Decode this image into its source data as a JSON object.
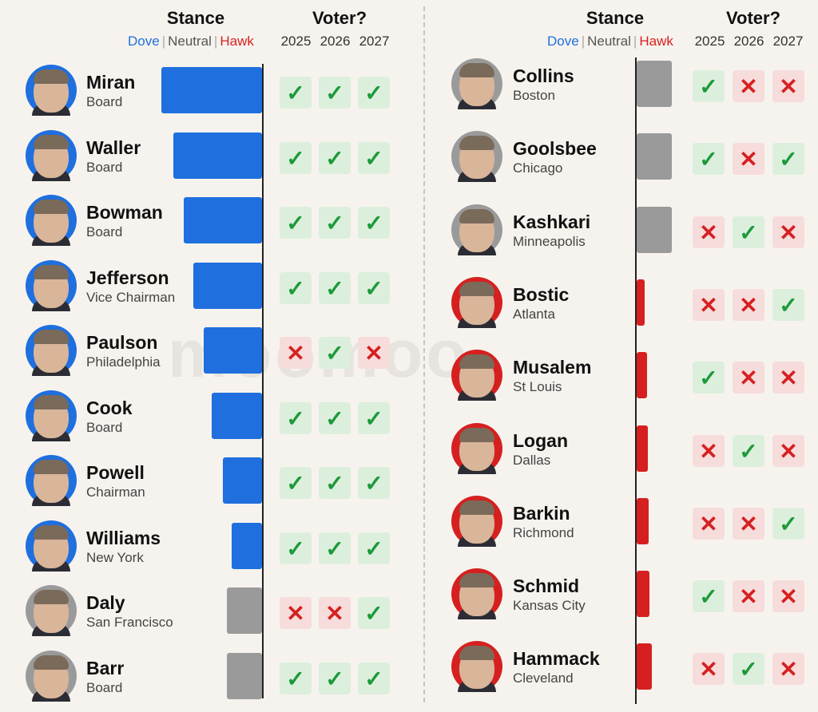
{
  "headers": {
    "stance": "Stance",
    "voter": "Voter?",
    "legend": {
      "dove": "Dove",
      "neutral": "Neutral",
      "hawk": "Hawk",
      "sep": "|"
    },
    "years": [
      "2025",
      "2026",
      "2027"
    ]
  },
  "watermark": "moomoo",
  "colors": {
    "dove": "#1f6fde",
    "neutral": "#9a9a9a",
    "hawk": "#d62020"
  },
  "vote_symbols": {
    "yes": "✓",
    "no": "✕"
  },
  "left": [
    {
      "name": "Miran",
      "role": "Board",
      "stance": "dove",
      "strength": 1.0,
      "votes": [
        "yes",
        "yes",
        "yes"
      ]
    },
    {
      "name": "Waller",
      "role": "Board",
      "stance": "dove",
      "strength": 0.88,
      "votes": [
        "yes",
        "yes",
        "yes"
      ]
    },
    {
      "name": "Bowman",
      "role": "Board",
      "stance": "dove",
      "strength": 0.78,
      "votes": [
        "yes",
        "yes",
        "yes"
      ]
    },
    {
      "name": "Jefferson",
      "role": "Vice Chairman",
      "stance": "dove",
      "strength": 0.68,
      "votes": [
        "yes",
        "yes",
        "yes"
      ]
    },
    {
      "name": "Paulson",
      "role": "Philadelphia",
      "stance": "dove",
      "strength": 0.58,
      "votes": [
        "no",
        "yes",
        "no"
      ]
    },
    {
      "name": "Cook",
      "role": "Board",
      "stance": "dove",
      "strength": 0.5,
      "votes": [
        "yes",
        "yes",
        "yes"
      ]
    },
    {
      "name": "Powell",
      "role": "Chairman",
      "stance": "dove",
      "strength": 0.39,
      "votes": [
        "yes",
        "yes",
        "yes"
      ]
    },
    {
      "name": "Williams",
      "role": "New York",
      "stance": "dove",
      "strength": 0.3,
      "votes": [
        "yes",
        "yes",
        "yes"
      ]
    },
    {
      "name": "Daly",
      "role": "San Francisco",
      "stance": "neutral",
      "strength": 0.35,
      "votes": [
        "no",
        "no",
        "yes"
      ]
    },
    {
      "name": "Barr",
      "role": "Board",
      "stance": "neutral",
      "strength": 0.35,
      "votes": [
        "yes",
        "yes",
        "yes"
      ]
    }
  ],
  "right": [
    {
      "name": "Collins",
      "role": "Boston",
      "stance": "neutral",
      "strength": 0.35,
      "votes": [
        "yes",
        "no",
        "no"
      ]
    },
    {
      "name": "Goolsbee",
      "role": "Chicago",
      "stance": "neutral",
      "strength": 0.35,
      "votes": [
        "yes",
        "no",
        "yes"
      ]
    },
    {
      "name": "Kashkari",
      "role": "Minneapolis",
      "stance": "neutral",
      "strength": 0.35,
      "votes": [
        "no",
        "yes",
        "no"
      ]
    },
    {
      "name": "Bostic",
      "role": "Atlanta",
      "stance": "hawk",
      "strength": 0.08,
      "votes": [
        "no",
        "no",
        "yes"
      ]
    },
    {
      "name": "Musalem",
      "role": "St Louis",
      "stance": "hawk",
      "strength": 0.1,
      "votes": [
        "yes",
        "no",
        "no"
      ]
    },
    {
      "name": "Logan",
      "role": "Dallas",
      "stance": "hawk",
      "strength": 0.11,
      "votes": [
        "no",
        "yes",
        "no"
      ]
    },
    {
      "name": "Barkin",
      "role": "Richmond",
      "stance": "hawk",
      "strength": 0.12,
      "votes": [
        "no",
        "no",
        "yes"
      ]
    },
    {
      "name": "Schmid",
      "role": "Kansas City",
      "stance": "hawk",
      "strength": 0.13,
      "votes": [
        "yes",
        "no",
        "no"
      ]
    },
    {
      "name": "Hammack",
      "role": "Cleveland",
      "stance": "hawk",
      "strength": 0.15,
      "votes": [
        "no",
        "yes",
        "no"
      ]
    }
  ]
}
